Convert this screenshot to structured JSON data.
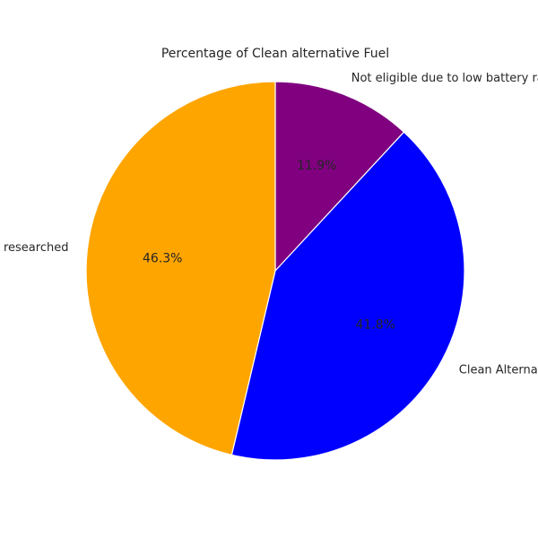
{
  "chart_data": {
    "type": "pie",
    "title": "Percentage of Clean alternative Fuel",
    "slices": [
      {
        "label": "Not eligible due to low battery range",
        "value": 11.9,
        "color": "#800080",
        "pct_text": "11.9%"
      },
      {
        "label": "Clean Alternative Fuel Vehicle Eligible",
        "value": 41.8,
        "color": "#0000ff",
        "pct_text": "41.8%"
      },
      {
        "label": "Eligibility unknown as battery range has not been researched",
        "value": 46.3,
        "color": "#ffa500",
        "pct_text": "46.3%"
      }
    ],
    "start_angle": "top",
    "direction": "clockwise"
  }
}
